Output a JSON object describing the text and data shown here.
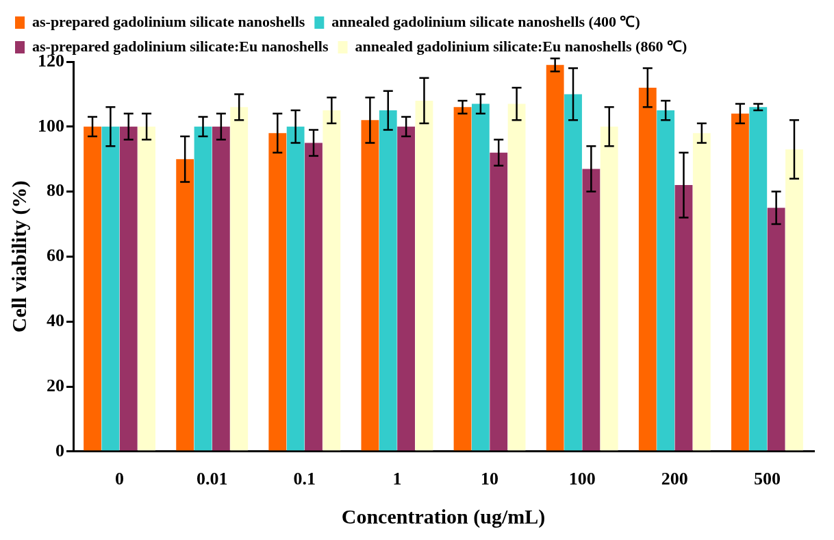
{
  "chart_data": {
    "type": "bar",
    "xlabel": "Concentration (ug/mL)",
    "ylabel": "Cell viability (%)",
    "categories": [
      "0",
      "0.01",
      "0.1",
      "1",
      "10",
      "100",
      "200",
      "500"
    ],
    "series": [
      {
        "name": "as-prepared gadolinium silicate nanoshells",
        "color": "#ff6600",
        "values": [
          100,
          90,
          98,
          102,
          106,
          119,
          112,
          104
        ],
        "errors": [
          3,
          7,
          6,
          7,
          2,
          2,
          6,
          3
        ]
      },
      {
        "name": "annealed gadolinium silicate nanoshells (400 ℃)",
        "color": "#33cccc",
        "values": [
          100,
          100,
          100,
          105,
          107,
          110,
          105,
          106
        ],
        "errors": [
          6,
          3,
          5,
          6,
          3,
          8,
          3,
          1
        ]
      },
      {
        "name": "as-prepared gadolinium silicate:Eu nanoshells",
        "color": "#993366",
        "values": [
          100,
          100,
          95,
          100,
          92,
          87,
          82,
          75
        ],
        "errors": [
          4,
          4,
          4,
          3,
          4,
          7,
          10,
          5
        ]
      },
      {
        "name": "annealed gadolinium silicate:Eu nanoshells (860 ℃)",
        "color": "#ffffcc",
        "values": [
          100,
          106,
          105,
          108,
          107,
          100,
          98,
          93
        ],
        "errors": [
          4,
          4,
          4,
          7,
          5,
          6,
          3,
          9
        ]
      }
    ],
    "ylim": [
      0,
      120
    ],
    "yticks": [
      0,
      20,
      40,
      60,
      80,
      100,
      120
    ],
    "grid": false,
    "legend": "top"
  }
}
